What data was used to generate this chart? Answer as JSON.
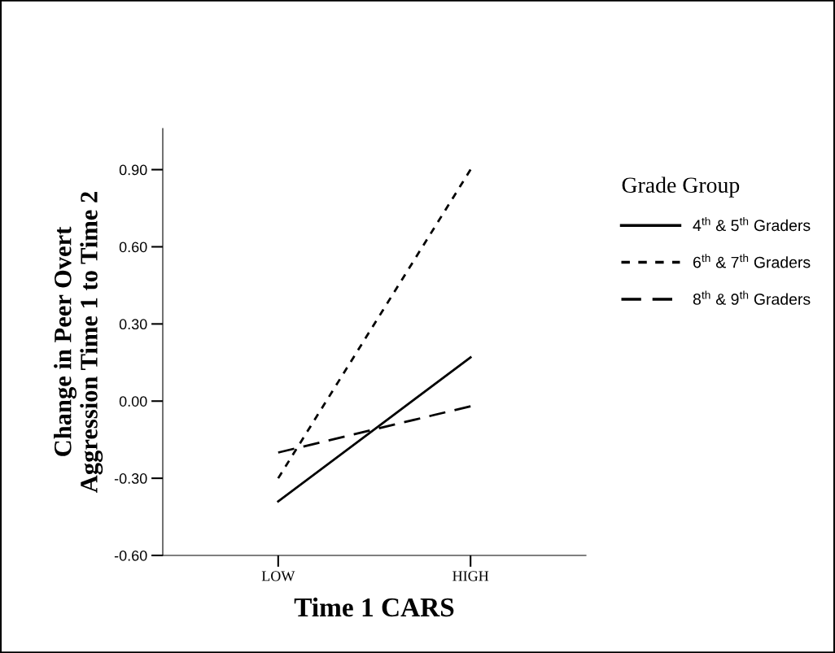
{
  "chart_data": {
    "type": "line",
    "xlabel": "Time 1 CARS",
    "ylabel": "Change in Peer Overt\nAggression Time 1 to Time 2",
    "legend_title": "Grade Group",
    "categories": [
      "LOW",
      "HIGH"
    ],
    "series": [
      {
        "name": "4$^{th}$ & 5$^{th}$ Graders",
        "color": "#000000",
        "line_style": "solid",
        "values": [
          -0.39,
          0.17
        ]
      },
      {
        "name": "6$^{th}$ & 7$^{th}$ Graders",
        "color": "#000000",
        "line_style": "dotted",
        "values": [
          -0.3,
          0.9
        ]
      },
      {
        "name": "8$^{th}$ & 9$^{th}$ Graders",
        "color": "#000000",
        "line_style": "dashed",
        "values": [
          -0.2,
          -0.02
        ]
      }
    ],
    "ylim": [
      -0.6,
      1.06
    ],
    "yticks": [
      {
        "value": -0.6,
        "label": "-0.60"
      },
      {
        "value": -0.3,
        "label": "-0.30"
      },
      {
        "value": 0,
        "label": "0.00"
      },
      {
        "value": 0.3,
        "label": "0.30"
      },
      {
        "value": 0.6,
        "label": "0.60"
      },
      {
        "value": 0.9,
        "label": "0.90"
      }
    ],
    "grid": false,
    "legend": "right",
    "marker": "none"
  }
}
